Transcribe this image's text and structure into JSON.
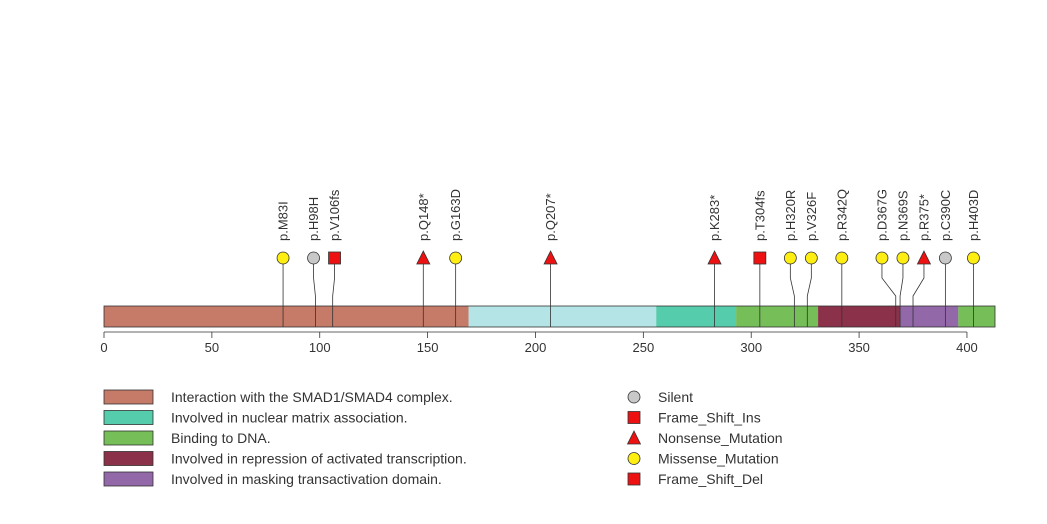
{
  "chart_data": {
    "type": "lollipop",
    "protein_length": 413,
    "xlim": [
      0,
      413
    ],
    "x_ticks": [
      0,
      50,
      100,
      150,
      200,
      250,
      300,
      350,
      400
    ],
    "domains": [
      {
        "start": 1,
        "end": 169,
        "color": "#c67a68",
        "legend": "Interaction with the SMAD1/SMAD4 complex."
      },
      {
        "start": 169,
        "end": 256,
        "color": "#b4e4e6",
        "legend": ""
      },
      {
        "start": 256,
        "end": 293,
        "color": "#55ccab",
        "legend": "Involved in nuclear matrix association."
      },
      {
        "start": 293,
        "end": 331,
        "color": "#76be58",
        "legend": "Binding to DNA."
      },
      {
        "start": 331,
        "end": 369,
        "color": "#8b3149",
        "legend": "Involved in repression of activated transcription."
      },
      {
        "start": 369,
        "end": 396,
        "color": "#9368a8",
        "legend": "Involved in masking transactivation domain."
      },
      {
        "start": 396,
        "end": 413,
        "color": "#76be58",
        "legend": ""
      }
    ],
    "domain_legend": [
      {
        "label": "Interaction with the SMAD1/SMAD4 complex.",
        "color": "#c67a68"
      },
      {
        "label": "Involved in nuclear matrix association.",
        "color": "#55ccab"
      },
      {
        "label": "Binding to DNA.",
        "color": "#76be58"
      },
      {
        "label": "Involved in repression of activated transcription.",
        "color": "#8b3149"
      },
      {
        "label": "Involved in masking transactivation domain.",
        "color": "#9368a8"
      }
    ],
    "mutation_legend": [
      {
        "label": "Silent",
        "shape": "circle",
        "color": "#c8c8c8"
      },
      {
        "label": "Frame_Shift_Ins",
        "shape": "square",
        "color": "#ee1111"
      },
      {
        "label": "Nonsense_Mutation",
        "shape": "triangle",
        "color": "#ee1111"
      },
      {
        "label": "Missense_Mutation",
        "shape": "circle",
        "color": "#ffee11"
      },
      {
        "label": "Frame_Shift_Del",
        "shape": "square",
        "color": "#ee1111"
      }
    ],
    "mutations": [
      {
        "label": "p.M83I",
        "position": 83,
        "type": "Missense_Mutation"
      },
      {
        "label": "p.H98H",
        "position": 98,
        "type": "Silent"
      },
      {
        "label": "p.V106fs",
        "position": 106,
        "type": "Frame_Shift_Ins"
      },
      {
        "label": "p.Q148*",
        "position": 148,
        "type": "Nonsense_Mutation"
      },
      {
        "label": "p.G163D",
        "position": 163,
        "type": "Missense_Mutation"
      },
      {
        "label": "p.Q207*",
        "position": 207,
        "type": "Nonsense_Mutation"
      },
      {
        "label": "p.K283*",
        "position": 283,
        "type": "Nonsense_Mutation"
      },
      {
        "label": "p.T304fs",
        "position": 304,
        "type": "Frame_Shift_Del"
      },
      {
        "label": "p.H320R",
        "position": 320,
        "type": "Missense_Mutation"
      },
      {
        "label": "p.V326F",
        "position": 326,
        "type": "Missense_Mutation"
      },
      {
        "label": "p.R342Q",
        "position": 342,
        "type": "Missense_Mutation"
      },
      {
        "label": "p.D367G",
        "position": 367,
        "type": "Missense_Mutation"
      },
      {
        "label": "p.N369S",
        "position": 369,
        "type": "Missense_Mutation"
      },
      {
        "label": "p.R375*",
        "position": 375,
        "type": "Nonsense_Mutation"
      },
      {
        "label": "p.C390C",
        "position": 390,
        "type": "Silent"
      },
      {
        "label": "p.H403D",
        "position": 403,
        "type": "Missense_Mutation"
      }
    ]
  }
}
